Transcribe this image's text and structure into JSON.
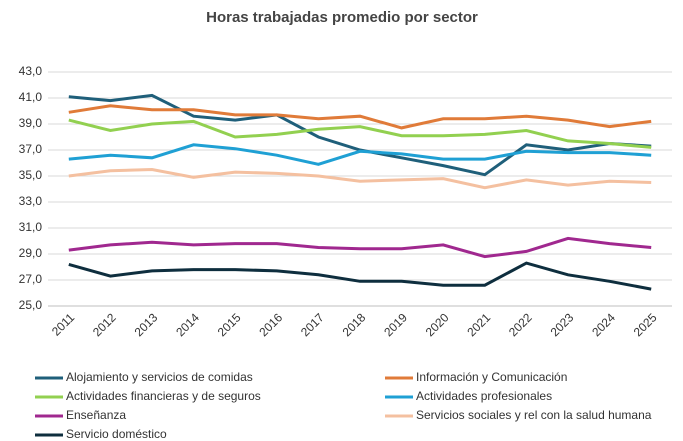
{
  "chart_data": {
    "type": "line",
    "title": "Horas trabajadas promedio por sector",
    "categories": [
      "2011",
      "2012",
      "2013",
      "2014",
      "2015",
      "2016",
      "2017",
      "2018",
      "2019",
      "2020",
      "2021",
      "2022",
      "2023",
      "2024",
      "2025"
    ],
    "series": [
      {
        "name": "Alojamiento y servicios de comidas",
        "color": "#1f5f7a",
        "values": [
          41.1,
          40.8,
          41.2,
          39.6,
          39.3,
          39.7,
          38.0,
          37.0,
          36.4,
          35.8,
          35.1,
          37.4,
          37.0,
          37.5,
          37.3
        ]
      },
      {
        "name": "Información y Comunicación",
        "color": "#e07b39",
        "values": [
          39.9,
          40.4,
          40.1,
          40.1,
          39.7,
          39.7,
          39.4,
          39.6,
          38.7,
          39.4,
          39.4,
          39.6,
          39.3,
          38.8,
          39.2
        ]
      },
      {
        "name": "Actividades financieras y de seguros",
        "color": "#92d050",
        "values": [
          39.3,
          38.5,
          39.0,
          39.2,
          38.0,
          38.2,
          38.6,
          38.8,
          38.1,
          38.1,
          38.2,
          38.5,
          37.7,
          37.5,
          37.2
        ]
      },
      {
        "name": "Actividades profesionales",
        "color": "#1fa0d4",
        "values": [
          36.3,
          36.6,
          36.4,
          37.4,
          37.1,
          36.6,
          35.9,
          36.9,
          36.7,
          36.3,
          36.3,
          36.9,
          36.8,
          36.8,
          36.6
        ]
      },
      {
        "name": "Enseñanza",
        "color": "#a0288f",
        "values": [
          29.3,
          29.7,
          29.9,
          29.7,
          29.8,
          29.8,
          29.5,
          29.4,
          29.4,
          29.7,
          28.8,
          29.2,
          30.2,
          29.8,
          29.5
        ]
      },
      {
        "name": "Servicios sociales y rel con la salud humana",
        "color": "#f4c0a0",
        "values": [
          35.0,
          35.4,
          35.5,
          34.9,
          35.3,
          35.2,
          35.0,
          34.6,
          34.7,
          34.8,
          34.1,
          34.7,
          34.3,
          34.6,
          34.5
        ]
      },
      {
        "name": "Servicio doméstico",
        "color": "#0e2e3e",
        "values": [
          28.2,
          27.3,
          27.7,
          27.8,
          27.8,
          27.7,
          27.4,
          26.9,
          26.9,
          26.6,
          26.6,
          28.3,
          27.4,
          26.9,
          26.3
        ]
      }
    ],
    "ylim": [
      25,
      43
    ],
    "yticks": [
      {
        "value": 25,
        "label": "25,0"
      },
      {
        "value": 27,
        "label": "27,0"
      },
      {
        "value": 29,
        "label": "29,0"
      },
      {
        "value": 31,
        "label": "31,0"
      },
      {
        "value": 33,
        "label": "33,0"
      },
      {
        "value": 35,
        "label": "35,0"
      },
      {
        "value": 37,
        "label": "37,0"
      },
      {
        "value": 39,
        "label": "39,0"
      },
      {
        "value": 41,
        "label": "41,0"
      },
      {
        "value": 43,
        "label": "43,0"
      }
    ],
    "grid": true
  }
}
